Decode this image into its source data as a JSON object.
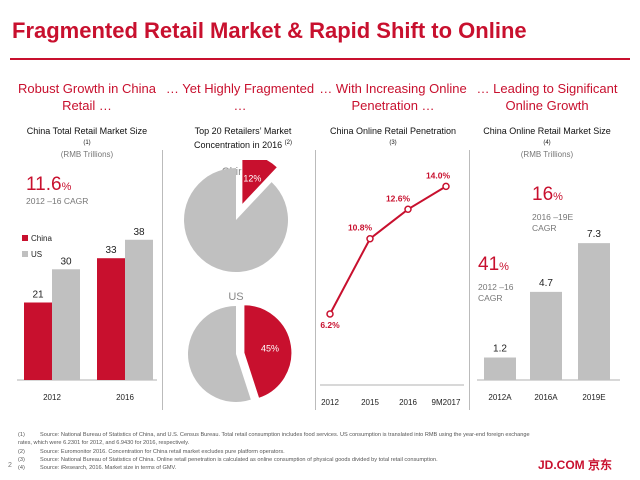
{
  "title": "Fragmented Retail Market & Rapid Shift to Online",
  "colors": {
    "accent": "#c8102e",
    "gray": "#c0c0c0"
  },
  "sections": [
    {
      "heading": "Robust Growth in China Retail …",
      "subtitle": "China Total Retail Market Size",
      "footnote_ref": "(1)",
      "unit": "(RMB Trillions)"
    },
    {
      "heading": "… Yet Highly Fragmented …",
      "subtitle": "Top 20 Retailers’ Market Concentration in 2016",
      "footnote_ref": "(2)",
      "unit": ""
    },
    {
      "heading": "… With Increasing Online Penetration …",
      "subtitle": "China Online Retail Penetration",
      "footnote_ref": "(3)",
      "unit": ""
    },
    {
      "heading": "… Leading to Significant Online Growth",
      "subtitle": "China Online Retail Market Size",
      "footnote_ref": "(4)",
      "unit": "(RMB Trillions)"
    }
  ],
  "callouts": {
    "retail_cagr": {
      "value": "11.6",
      "suffix": "%",
      "label": "2012 –16 CAGR"
    },
    "online_cagr_hist": {
      "value": "41",
      "suffix": "%",
      "label1": "2012 –16",
      "label2": "CAGR"
    },
    "online_cagr_fcst": {
      "value": "16",
      "suffix": "%",
      "label1": "2016 –19E",
      "label2": "CAGR"
    }
  },
  "chart_data": [
    {
      "type": "bar",
      "title": "China Total Retail Market Size",
      "categories": [
        "2012",
        "2016"
      ],
      "series": [
        {
          "name": "China",
          "values": [
            21,
            33
          ]
        },
        {
          "name": "US",
          "values": [
            30,
            38
          ]
        }
      ],
      "ylim": [
        0,
        42
      ],
      "legend": "left"
    },
    {
      "type": "pie",
      "title": "China",
      "slices": [
        {
          "label": "12%",
          "value": 12
        },
        {
          "label": "",
          "value": 88
        }
      ]
    },
    {
      "type": "pie",
      "title": "US",
      "slices": [
        {
          "label": "45%",
          "value": 45
        },
        {
          "label": "",
          "value": 55
        }
      ]
    },
    {
      "type": "line",
      "title": "China Online Retail Penetration",
      "categories": [
        "2012",
        "2015",
        "2016",
        "9M2017"
      ],
      "values": [
        6.2,
        10.8,
        12.6,
        14.0
      ],
      "labels": [
        "6.2%",
        "10.8%",
        "12.6%",
        "14.0%"
      ],
      "ylim": [
        4,
        15
      ]
    },
    {
      "type": "bar",
      "title": "China Online Retail Market Size",
      "categories": [
        "2012A",
        "2016A",
        "2019E"
      ],
      "values": [
        1.2,
        4.7,
        7.3
      ],
      "ylim": [
        0,
        8
      ]
    }
  ],
  "footnotes": [
    {
      "num": "(1)",
      "text": "Source: National Bureau of Statistics of China, and U.S. Census Bureau. Total retail consumption includes food services. US consumption is translated into RMB using the year-end foreign exchange rates, which were 6.2301 for 2012, and 6.9430 for 2016, respectively."
    },
    {
      "num": "(2)",
      "text": "Source: Euromonitor 2016. Concentration for China retail market excludes pure platform operators."
    },
    {
      "num": "(3)",
      "text": "Source: National Bureau of Statistics of China. Online retail penetration is calculated as online consumption of physical goods divided by total retail consumption."
    },
    {
      "num": "(4)",
      "text": "Source: iResearch, 2016. Market size in terms of GMV."
    }
  ],
  "page_number": "2",
  "logo": "JD.COM 京东"
}
